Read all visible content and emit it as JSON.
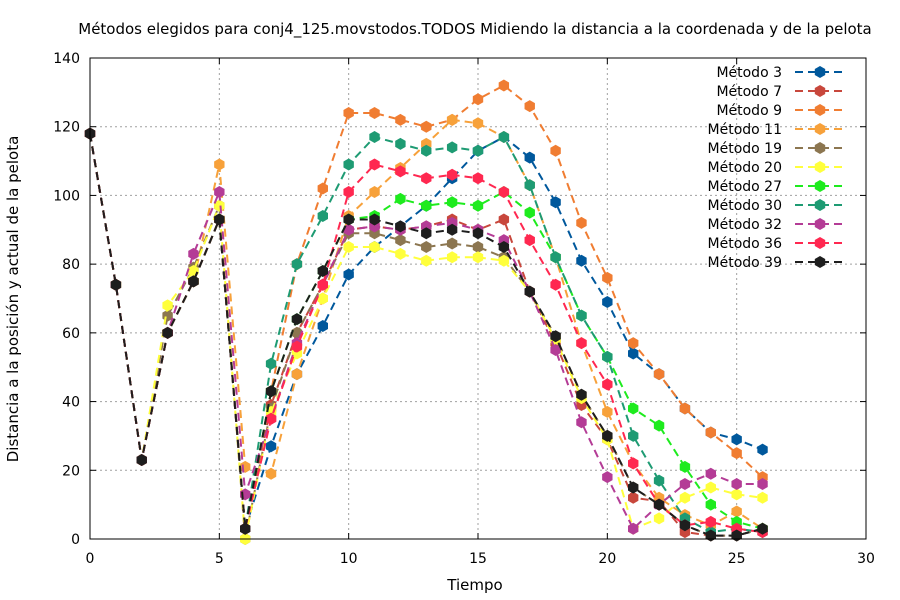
{
  "chart_data": {
    "type": "line",
    "title": "Métodos elegidos para conj4_125.movstodos.TODOS Midiendo la distancia a la coordenada y de la pelota",
    "xlabel": "Tiempo",
    "ylabel": "Distancia a la posición y actual de la pelota",
    "xlim": [
      0,
      30
    ],
    "ylim": [
      0,
      140
    ],
    "xticks": [
      0,
      5,
      10,
      15,
      20,
      25,
      30
    ],
    "yticks": [
      0,
      20,
      40,
      60,
      80,
      100,
      120,
      140
    ],
    "grid": true,
    "legend_position": "top-right",
    "series": [
      {
        "name": "Método 3",
        "color": "#00589c",
        "dashed": true,
        "x": [
          0,
          1,
          2,
          3,
          4,
          5,
          6,
          7,
          8,
          9,
          10,
          11,
          12,
          13,
          14,
          15,
          16,
          17,
          18,
          19,
          20,
          21,
          22,
          23,
          24,
          25,
          26
        ],
        "y": [
          118,
          74,
          23,
          60,
          75,
          93,
          3,
          27,
          48,
          62,
          77,
          85,
          91,
          97,
          105,
          113,
          117,
          111,
          98,
          81,
          69,
          54,
          48,
          38,
          31,
          29,
          26
        ]
      },
      {
        "name": "Método 7",
        "color": "#c8473c",
        "dashed": true,
        "x": [
          0,
          1,
          2,
          3,
          4,
          5,
          6,
          7,
          8,
          9,
          10,
          11,
          12,
          13,
          14,
          15,
          16,
          17,
          18,
          19,
          20,
          21,
          22,
          23,
          24,
          25,
          26
        ],
        "y": [
          118,
          74,
          23,
          60,
          75,
          93,
          3,
          39,
          60,
          74,
          90,
          91,
          90,
          91,
          93,
          90,
          93,
          72,
          57,
          39,
          29,
          12,
          11,
          2,
          1,
          1,
          3
        ]
      },
      {
        "name": "Método 9",
        "color": "#f07d32",
        "dashed": true,
        "x": [
          0,
          1,
          2,
          3,
          4,
          5,
          6,
          7,
          8,
          9,
          10,
          11,
          12,
          13,
          14,
          15,
          16,
          17,
          18,
          19,
          20,
          21,
          22,
          23,
          24,
          25,
          26
        ],
        "y": [
          118,
          74,
          23,
          60,
          75,
          93,
          3,
          43,
          80,
          102,
          124,
          124,
          122,
          120,
          122,
          128,
          132,
          126,
          113,
          92,
          76,
          57,
          48,
          38,
          31,
          25,
          18
        ]
      },
      {
        "name": "Método 11",
        "color": "#f7a13a",
        "dashed": true,
        "x": [
          0,
          1,
          2,
          3,
          4,
          5,
          6,
          7,
          8,
          9,
          10,
          11,
          12,
          13,
          14,
          15,
          16,
          17,
          18,
          19,
          20,
          21,
          22,
          23,
          24,
          25,
          26
        ],
        "y": [
          118,
          74,
          23,
          60,
          75,
          109,
          21,
          19,
          48,
          70,
          94,
          101,
          108,
          115,
          122,
          121,
          117,
          103,
          82,
          57,
          37,
          22,
          12,
          7,
          4,
          8,
          3
        ]
      },
      {
        "name": "Método 19",
        "color": "#8c7650",
        "dashed": true,
        "x": [
          0,
          1,
          2,
          3,
          4,
          5,
          6,
          7,
          8,
          9,
          10,
          11,
          12,
          13,
          14,
          15,
          16,
          17,
          18,
          19,
          20,
          21,
          22,
          23,
          24,
          25,
          26
        ],
        "y": [
          118,
          74,
          23,
          65,
          79,
          97,
          0,
          38,
          60,
          74,
          89,
          89,
          87,
          85,
          86,
          85,
          82,
          72,
          59,
          42,
          30,
          15,
          10,
          4,
          1,
          1,
          3
        ]
      },
      {
        "name": "Método 20",
        "color": "#ffff3c",
        "dashed": true,
        "x": [
          0,
          1,
          2,
          3,
          4,
          5,
          6,
          7,
          8,
          9,
          10,
          11,
          12,
          13,
          14,
          15,
          16,
          17,
          18,
          19,
          20,
          21,
          22,
          23,
          24,
          25,
          26
        ],
        "y": [
          118,
          74,
          23,
          68,
          78,
          97,
          0,
          37,
          54,
          70,
          85,
          85,
          83,
          81,
          82,
          82,
          81,
          72,
          58,
          41,
          29,
          3,
          6,
          12,
          15,
          13,
          12
        ]
      },
      {
        "name": "Método 27",
        "color": "#1eeb1e",
        "dashed": true,
        "x": [
          0,
          1,
          2,
          3,
          4,
          5,
          6,
          7,
          8,
          9,
          10,
          11,
          12,
          13,
          14,
          15,
          16,
          17,
          18,
          19,
          20,
          21,
          22,
          23,
          24,
          25,
          26
        ],
        "y": [
          118,
          74,
          23,
          60,
          75,
          93,
          3,
          43,
          64,
          78,
          93,
          94,
          99,
          97,
          98,
          97,
          101,
          95,
          82,
          65,
          53,
          38,
          33,
          21,
          10,
          5,
          3
        ]
      },
      {
        "name": "Método 30",
        "color": "#1e9b73",
        "dashed": true,
        "x": [
          0,
          1,
          2,
          3,
          4,
          5,
          6,
          7,
          8,
          9,
          10,
          11,
          12,
          13,
          14,
          15,
          16,
          17,
          18,
          19,
          20,
          21,
          22,
          23,
          24,
          25,
          26
        ],
        "y": [
          118,
          74,
          23,
          60,
          75,
          93,
          3,
          51,
          80,
          94,
          109,
          117,
          115,
          113,
          114,
          113,
          117,
          103,
          82,
          65,
          53,
          30,
          17,
          6,
          2,
          3,
          2
        ]
      },
      {
        "name": "Método 32",
        "color": "#b43c96",
        "dashed": true,
        "x": [
          0,
          1,
          2,
          3,
          4,
          5,
          6,
          7,
          8,
          9,
          10,
          11,
          12,
          13,
          14,
          15,
          16,
          17,
          18,
          19,
          20,
          21,
          22,
          23,
          24,
          25,
          26
        ],
        "y": [
          118,
          74,
          23,
          60,
          83,
          101,
          13,
          35,
          57,
          74,
          90,
          91,
          90,
          91,
          92,
          90,
          87,
          72,
          55,
          34,
          18,
          3,
          10,
          16,
          19,
          16,
          16
        ]
      },
      {
        "name": "Método 36",
        "color": "#ff2850",
        "dashed": true,
        "x": [
          0,
          1,
          2,
          3,
          4,
          5,
          6,
          7,
          8,
          9,
          10,
          11,
          12,
          13,
          14,
          15,
          16,
          17,
          18,
          19,
          20,
          21,
          22,
          23,
          24,
          25,
          26
        ],
        "y": [
          118,
          74,
          23,
          60,
          75,
          93,
          3,
          35,
          56,
          74,
          101,
          109,
          107,
          105,
          106,
          105,
          101,
          87,
          74,
          57,
          45,
          22,
          10,
          4,
          5,
          3,
          2
        ]
      },
      {
        "name": "Método 39",
        "color": "#1e1e1e",
        "dashed": true,
        "x": [
          0,
          1,
          2,
          3,
          4,
          5,
          6,
          7,
          8,
          9,
          10,
          11,
          12,
          13,
          14,
          15,
          16,
          17,
          18,
          19,
          20,
          21,
          22,
          23,
          24,
          25,
          26
        ],
        "y": [
          118,
          74,
          23,
          60,
          75,
          93,
          3,
          43,
          64,
          78,
          93,
          93,
          91,
          89,
          90,
          89,
          85,
          72,
          59,
          42,
          30,
          15,
          10,
          4,
          1,
          1,
          3
        ]
      }
    ]
  }
}
